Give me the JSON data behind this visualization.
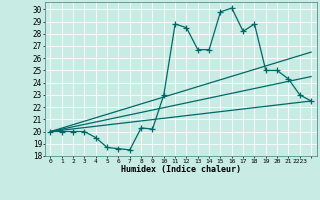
{
  "title": "",
  "xlabel": "Humidex (Indice chaleur)",
  "bg_color": "#c8ebe3",
  "grid_color": "#ffffff",
  "line_color": "#006868",
  "line_width": 0.9,
  "marker": "+",
  "marker_size": 4,
  "marker_ew": 0.9,
  "xlim": [
    -0.5,
    23.5
  ],
  "ylim": [
    18,
    30.6
  ],
  "yticks": [
    18,
    19,
    20,
    21,
    22,
    23,
    24,
    25,
    26,
    27,
    28,
    29,
    30
  ],
  "xticks": [
    0,
    1,
    2,
    3,
    4,
    5,
    6,
    7,
    8,
    9,
    10,
    11,
    12,
    13,
    14,
    15,
    16,
    17,
    18,
    19,
    20,
    21,
    22,
    23
  ],
  "xtick_labels": [
    "0",
    "1",
    "2",
    "3",
    "4",
    "5",
    "6",
    "7",
    "8",
    "9",
    "10",
    "11",
    "12",
    "13",
    "14",
    "15",
    "16",
    "17",
    "18",
    "19",
    "20",
    "21",
    "2223",
    ""
  ],
  "curve1_x": [
    0,
    1,
    2,
    3,
    4,
    5,
    6,
    7,
    8,
    9,
    10,
    11,
    12,
    13,
    14,
    15,
    16,
    17,
    18,
    19,
    20,
    21,
    22,
    23
  ],
  "curve1_y": [
    20.0,
    20.0,
    20.0,
    20.0,
    19.5,
    18.7,
    18.6,
    18.5,
    20.3,
    20.2,
    23.0,
    28.8,
    28.5,
    26.7,
    26.7,
    29.8,
    30.1,
    28.2,
    28.8,
    25.0,
    25.0,
    24.3,
    23.0,
    22.5
  ],
  "line1_x": [
    0,
    23
  ],
  "line1_y": [
    20.0,
    22.5
  ],
  "line2_x": [
    0,
    23
  ],
  "line2_y": [
    20.0,
    24.5
  ],
  "line3_x": [
    0,
    23
  ],
  "line3_y": [
    20.0,
    26.5
  ]
}
